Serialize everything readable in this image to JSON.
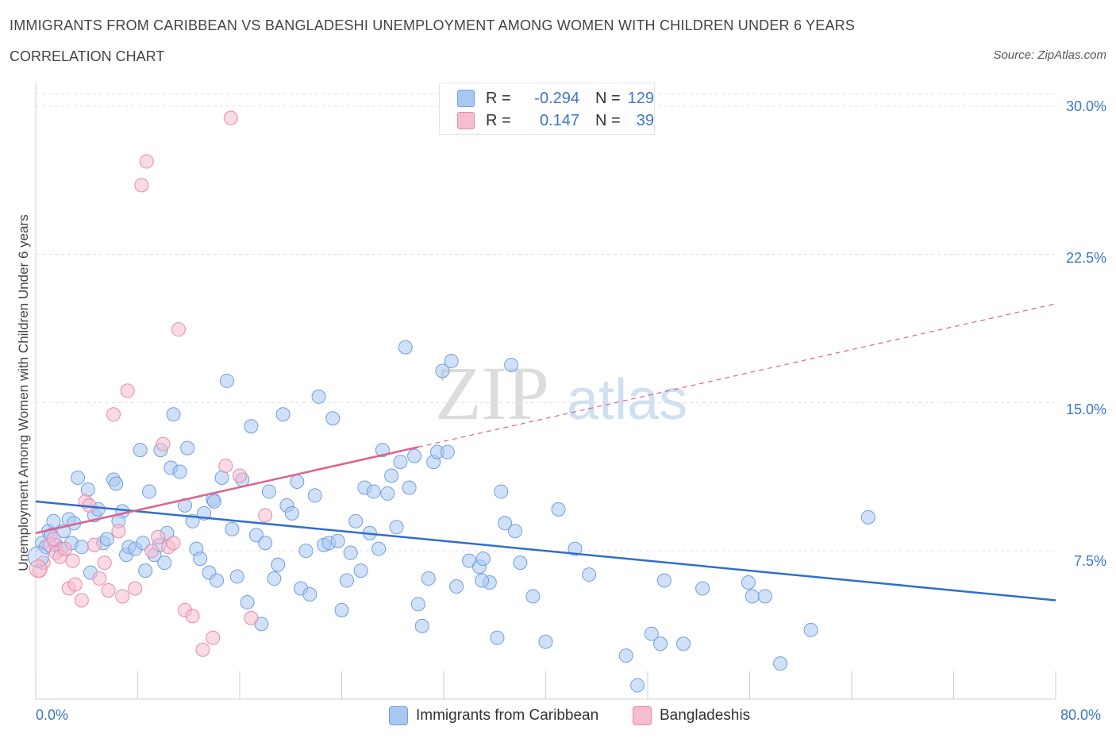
{
  "header": {
    "title": "IMMIGRANTS FROM CARIBBEAN VS BANGLADESHI UNEMPLOYMENT AMONG WOMEN WITH CHILDREN UNDER 6 YEARS",
    "subtitle": "CORRELATION CHART",
    "source": "Source: ZipAtlas.com"
  },
  "legend_stats": {
    "rows": [
      {
        "r_label": "R =",
        "r_value": "-0.294",
        "n_label": "N =",
        "n_value": "129"
      },
      {
        "r_label": "R =",
        "r_value": "0.147",
        "n_label": "N =",
        "n_value": "39"
      }
    ]
  },
  "watermark": {
    "zip": "ZIP",
    "atlas": "atlas"
  },
  "colors": {
    "caribbean_fill": "#a9c8f0",
    "caribbean_stroke": "#6f9fe0",
    "caribbean_line": "#2f6fcc",
    "bangladeshi_fill": "#f6bcd0",
    "bangladeshi_stroke": "#e88aa8",
    "bangladeshi_line": "#e0608c",
    "tick_text": "#3b76c8",
    "grid": "#e0e0e0"
  },
  "chart_data": {
    "type": "scatter",
    "xlabel": "",
    "ylabel": "Unemployment Among Women with Children Under 6 years",
    "xlim": [
      0,
      80
    ],
    "ylim": [
      0,
      30
    ],
    "x_tick_labels": [
      "0.0%",
      "80.0%"
    ],
    "y_tick_labels": [
      "7.5%",
      "15.0%",
      "22.5%",
      "30.0%"
    ],
    "y_ticks": [
      7.5,
      15.0,
      22.5,
      30.0
    ],
    "grid": true,
    "legend_placement": "bottom-center",
    "series": [
      {
        "name": "Immigrants from Caribbean",
        "trend": {
          "x0": 0,
          "y0": 10.0,
          "x1": 80,
          "y1": 5.0
        },
        "points": [
          [
            0.5,
            7.9
          ],
          [
            0.8,
            7.7
          ],
          [
            1.0,
            8.5
          ],
          [
            1.2,
            8.3
          ],
          [
            1.4,
            9.0
          ],
          [
            1.6,
            7.8
          ],
          [
            2.2,
            8.5
          ],
          [
            2.6,
            9.1
          ],
          [
            2.8,
            7.9
          ],
          [
            2.0,
            7.6
          ],
          [
            3.3,
            11.2
          ],
          [
            3.6,
            7.7
          ],
          [
            4.1,
            10.6
          ],
          [
            4.3,
            6.4
          ],
          [
            4.6,
            9.3
          ],
          [
            4.9,
            9.6
          ],
          [
            5.3,
            7.9
          ],
          [
            5.6,
            8.1
          ],
          [
            6.1,
            11.1
          ],
          [
            6.3,
            10.9
          ],
          [
            6.8,
            9.5
          ],
          [
            7.1,
            7.3
          ],
          [
            7.3,
            7.7
          ],
          [
            7.8,
            7.6
          ],
          [
            8.2,
            12.6
          ],
          [
            8.4,
            7.9
          ],
          [
            8.6,
            6.5
          ],
          [
            8.9,
            10.5
          ],
          [
            9.3,
            7.3
          ],
          [
            9.7,
            7.8
          ],
          [
            10.1,
            6.9
          ],
          [
            10.3,
            8.4
          ],
          [
            10.6,
            11.7
          ],
          [
            10.8,
            14.4
          ],
          [
            11.3,
            11.5
          ],
          [
            11.7,
            9.8
          ],
          [
            11.9,
            12.7
          ],
          [
            12.3,
            9.0
          ],
          [
            12.6,
            7.6
          ],
          [
            12.9,
            7.1
          ],
          [
            13.2,
            9.4
          ],
          [
            13.6,
            6.4
          ],
          [
            13.9,
            10.1
          ],
          [
            14.2,
            6.0
          ],
          [
            14.6,
            11.2
          ],
          [
            15.0,
            16.1
          ],
          [
            15.4,
            8.6
          ],
          [
            15.8,
            6.2
          ],
          [
            16.2,
            11.1
          ],
          [
            16.6,
            4.9
          ],
          [
            16.9,
            13.8
          ],
          [
            17.3,
            8.3
          ],
          [
            17.7,
            3.8
          ],
          [
            18.0,
            7.9
          ],
          [
            18.3,
            10.5
          ],
          [
            18.7,
            6.1
          ],
          [
            19.0,
            6.8
          ],
          [
            19.4,
            14.4
          ],
          [
            19.7,
            9.8
          ],
          [
            20.1,
            9.4
          ],
          [
            20.5,
            11.0
          ],
          [
            20.8,
            5.6
          ],
          [
            21.2,
            7.5
          ],
          [
            21.5,
            5.3
          ],
          [
            21.9,
            10.3
          ],
          [
            22.2,
            15.3
          ],
          [
            22.6,
            7.8
          ],
          [
            23.0,
            7.9
          ],
          [
            23.3,
            14.2
          ],
          [
            23.7,
            8.0
          ],
          [
            24.0,
            4.5
          ],
          [
            24.4,
            6.0
          ],
          [
            24.7,
            7.4
          ],
          [
            25.1,
            9.0
          ],
          [
            25.5,
            6.5
          ],
          [
            25.8,
            10.7
          ],
          [
            26.2,
            8.4
          ],
          [
            26.5,
            10.5
          ],
          [
            26.9,
            7.6
          ],
          [
            27.2,
            12.6
          ],
          [
            27.6,
            10.4
          ],
          [
            27.9,
            11.3
          ],
          [
            28.3,
            8.7
          ],
          [
            28.6,
            12.0
          ],
          [
            29.0,
            17.8
          ],
          [
            29.3,
            10.7
          ],
          [
            29.7,
            12.3
          ],
          [
            30.0,
            4.8
          ],
          [
            30.3,
            3.7
          ],
          [
            30.8,
            6.1
          ],
          [
            31.2,
            12.0
          ],
          [
            31.5,
            12.5
          ],
          [
            31.9,
            16.6
          ],
          [
            32.3,
            12.5
          ],
          [
            32.6,
            17.1
          ],
          [
            33.0,
            5.7
          ],
          [
            34.0,
            7.0
          ],
          [
            34.8,
            6.7
          ],
          [
            35.1,
            7.1
          ],
          [
            35.6,
            5.9
          ],
          [
            36.2,
            3.1
          ],
          [
            36.5,
            10.5
          ],
          [
            36.8,
            8.9
          ],
          [
            37.3,
            16.9
          ],
          [
            37.6,
            8.5
          ],
          [
            38.0,
            6.9
          ],
          [
            39.0,
            5.2
          ],
          [
            40.0,
            2.9
          ],
          [
            41.0,
            9.6
          ],
          [
            42.3,
            7.6
          ],
          [
            43.4,
            6.3
          ],
          [
            46.3,
            2.2
          ],
          [
            47.2,
            0.7
          ],
          [
            48.3,
            3.3
          ],
          [
            49.0,
            2.8
          ],
          [
            49.3,
            6.0
          ],
          [
            50.8,
            2.8
          ],
          [
            52.3,
            5.6
          ],
          [
            55.9,
            5.9
          ],
          [
            56.2,
            5.2
          ],
          [
            57.2,
            5.2
          ],
          [
            58.4,
            1.8
          ],
          [
            60.8,
            3.5
          ],
          [
            65.3,
            9.2
          ],
          [
            35.0,
            6.0
          ],
          [
            14.0,
            10.0
          ],
          [
            6.5,
            9.0
          ],
          [
            3.0,
            8.9
          ],
          [
            9.8,
            12.6
          ]
        ]
      },
      {
        "name": "Bangladeshis",
        "trend": {
          "x0": 0,
          "y0": 8.4,
          "x1": 80,
          "y1": 20.0
        },
        "points": [
          [
            0.3,
            6.5
          ],
          [
            0.6,
            6.9
          ],
          [
            1.1,
            7.8
          ],
          [
            1.4,
            8.1
          ],
          [
            1.6,
            7.4
          ],
          [
            1.9,
            7.2
          ],
          [
            2.3,
            7.6
          ],
          [
            2.6,
            5.6
          ],
          [
            2.9,
            7.0
          ],
          [
            3.1,
            5.8
          ],
          [
            3.6,
            5.0
          ],
          [
            3.9,
            10.0
          ],
          [
            4.2,
            9.8
          ],
          [
            4.6,
            7.8
          ],
          [
            5.0,
            6.1
          ],
          [
            5.4,
            6.9
          ],
          [
            5.7,
            5.5
          ],
          [
            6.1,
            14.4
          ],
          [
            6.5,
            8.5
          ],
          [
            6.8,
            5.2
          ],
          [
            7.2,
            15.6
          ],
          [
            7.8,
            5.6
          ],
          [
            8.3,
            26.0
          ],
          [
            8.7,
            27.2
          ],
          [
            9.1,
            7.5
          ],
          [
            9.6,
            8.2
          ],
          [
            10.0,
            12.9
          ],
          [
            10.4,
            7.7
          ],
          [
            10.8,
            7.9
          ],
          [
            11.2,
            18.7
          ],
          [
            11.7,
            4.5
          ],
          [
            12.3,
            4.2
          ],
          [
            13.1,
            2.5
          ],
          [
            13.9,
            3.1
          ],
          [
            14.9,
            11.8
          ],
          [
            15.3,
            29.4
          ],
          [
            16.0,
            11.3
          ],
          [
            16.9,
            4.1
          ],
          [
            18.0,
            9.3
          ]
        ]
      }
    ]
  }
}
